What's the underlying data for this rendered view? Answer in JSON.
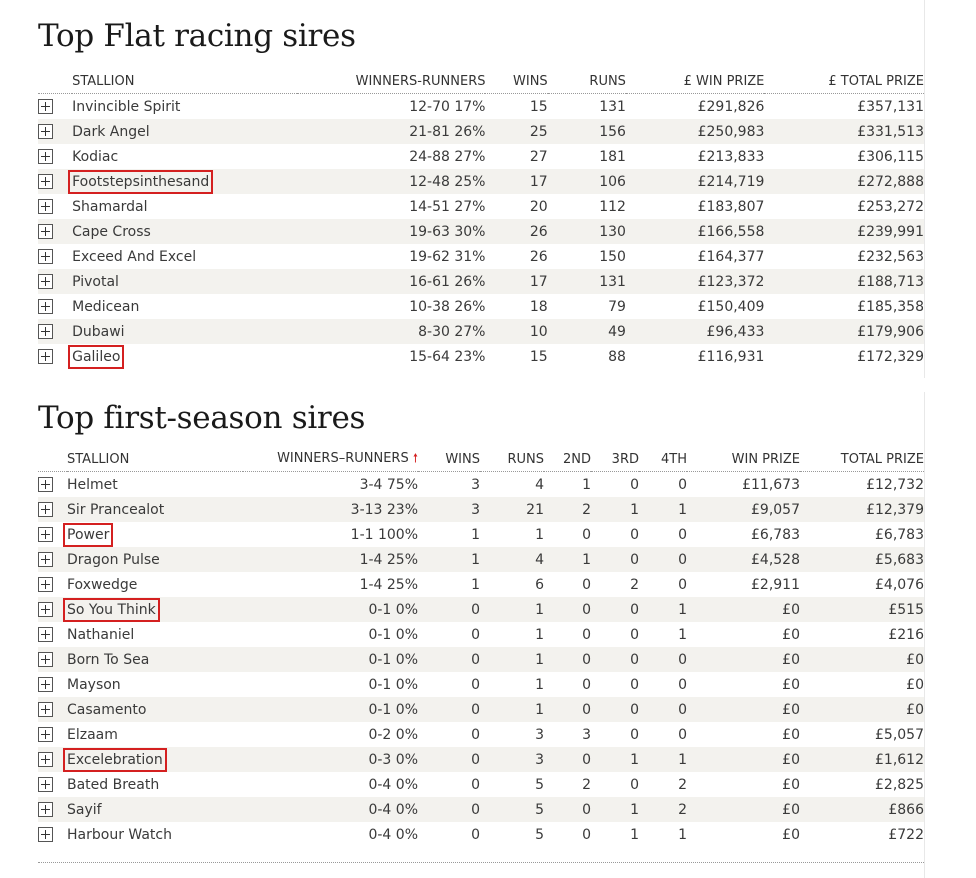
{
  "flat": {
    "title": "Top Flat racing sires",
    "headers": [
      "STALLION",
      "WINNERS-RUNNERS",
      "WINS",
      "RUNS",
      "£ WIN PRIZE",
      "£ TOTAL PRIZE"
    ],
    "rows": [
      {
        "name": "Invincible Spirit",
        "wr": "12-70 17%",
        "wins": "15",
        "runs": "131",
        "win": "£291,826",
        "total": "£357,131",
        "highlight": false
      },
      {
        "name": "Dark Angel",
        "wr": "21-81 26%",
        "wins": "25",
        "runs": "156",
        "win": "£250,983",
        "total": "£331,513",
        "highlight": false
      },
      {
        "name": "Kodiac",
        "wr": "24-88 27%",
        "wins": "27",
        "runs": "181",
        "win": "£213,833",
        "total": "£306,115",
        "highlight": false
      },
      {
        "name": "Footstepsinthesand",
        "wr": "12-48 25%",
        "wins": "17",
        "runs": "106",
        "win": "£214,719",
        "total": "£272,888",
        "highlight": true
      },
      {
        "name": "Shamardal",
        "wr": "14-51 27%",
        "wins": "20",
        "runs": "112",
        "win": "£183,807",
        "total": "£253,272",
        "highlight": false
      },
      {
        "name": "Cape Cross",
        "wr": "19-63 30%",
        "wins": "26",
        "runs": "130",
        "win": "£166,558",
        "total": "£239,991",
        "highlight": false
      },
      {
        "name": "Exceed And Excel",
        "wr": "19-62 31%",
        "wins": "26",
        "runs": "150",
        "win": "£164,377",
        "total": "£232,563",
        "highlight": false
      },
      {
        "name": "Pivotal",
        "wr": "16-61 26%",
        "wins": "17",
        "runs": "131",
        "win": "£123,372",
        "total": "£188,713",
        "highlight": false
      },
      {
        "name": "Medicean",
        "wr": "10-38 26%",
        "wins": "18",
        "runs": "79",
        "win": "£150,409",
        "total": "£185,358",
        "highlight": false
      },
      {
        "name": "Dubawi",
        "wr": "8-30 27%",
        "wins": "10",
        "runs": "49",
        "win": "£96,433",
        "total": "£179,906",
        "highlight": false
      },
      {
        "name": "Galileo",
        "wr": "15-64 23%",
        "wins": "15",
        "runs": "88",
        "win": "£116,931",
        "total": "£172,329",
        "highlight": true
      }
    ]
  },
  "first": {
    "title": "Top first-season sires",
    "headers": [
      "STALLION",
      "WINNERS–RUNNERS",
      "WINS",
      "RUNS",
      "2ND",
      "3RD",
      "4TH",
      "WIN PRIZE",
      "TOTAL PRIZE"
    ],
    "sort_arrow": "🠕",
    "rows": [
      {
        "name": "Helmet",
        "wr": "3-4 75%",
        "wins": "3",
        "runs": "4",
        "second": "1",
        "third": "0",
        "fourth": "0",
        "win": "£11,673",
        "total": "£12,732",
        "highlight": false
      },
      {
        "name": "Sir Prancealot",
        "wr": "3-13 23%",
        "wins": "3",
        "runs": "21",
        "second": "2",
        "third": "1",
        "fourth": "1",
        "win": "£9,057",
        "total": "£12,379",
        "highlight": false
      },
      {
        "name": "Power",
        "wr": "1-1 100%",
        "wins": "1",
        "runs": "1",
        "second": "0",
        "third": "0",
        "fourth": "0",
        "win": "£6,783",
        "total": "£6,783",
        "highlight": true
      },
      {
        "name": "Dragon Pulse",
        "wr": "1-4 25%",
        "wins": "1",
        "runs": "4",
        "second": "1",
        "third": "0",
        "fourth": "0",
        "win": "£4,528",
        "total": "£5,683",
        "highlight": false
      },
      {
        "name": "Foxwedge",
        "wr": "1-4 25%",
        "wins": "1",
        "runs": "6",
        "second": "0",
        "third": "2",
        "fourth": "0",
        "win": "£2,911",
        "total": "£4,076",
        "highlight": false
      },
      {
        "name": "So You Think",
        "wr": "0-1 0%",
        "wins": "0",
        "runs": "1",
        "second": "0",
        "third": "0",
        "fourth": "1",
        "win": "£0",
        "total": "£515",
        "highlight": true
      },
      {
        "name": "Nathaniel",
        "wr": "0-1 0%",
        "wins": "0",
        "runs": "1",
        "second": "0",
        "third": "0",
        "fourth": "1",
        "win": "£0",
        "total": "£216",
        "highlight": false
      },
      {
        "name": "Born To Sea",
        "wr": "0-1 0%",
        "wins": "0",
        "runs": "1",
        "second": "0",
        "third": "0",
        "fourth": "0",
        "win": "£0",
        "total": "£0",
        "highlight": false
      },
      {
        "name": "Mayson",
        "wr": "0-1 0%",
        "wins": "0",
        "runs": "1",
        "second": "0",
        "third": "0",
        "fourth": "0",
        "win": "£0",
        "total": "£0",
        "highlight": false
      },
      {
        "name": "Casamento",
        "wr": "0-1 0%",
        "wins": "0",
        "runs": "1",
        "second": "0",
        "third": "0",
        "fourth": "0",
        "win": "£0",
        "total": "£0",
        "highlight": false
      },
      {
        "name": "Elzaam",
        "wr": "0-2 0%",
        "wins": "0",
        "runs": "3",
        "second": "3",
        "third": "0",
        "fourth": "0",
        "win": "£0",
        "total": "£5,057",
        "highlight": false
      },
      {
        "name": "Excelebration",
        "wr": "0-3 0%",
        "wins": "0",
        "runs": "3",
        "second": "0",
        "third": "1",
        "fourth": "1",
        "win": "£0",
        "total": "£1,612",
        "highlight": true
      },
      {
        "name": "Bated Breath",
        "wr": "0-4 0%",
        "wins": "0",
        "runs": "5",
        "second": "2",
        "third": "0",
        "fourth": "2",
        "win": "£0",
        "total": "£2,825",
        "highlight": false
      },
      {
        "name": "Sayif",
        "wr": "0-4 0%",
        "wins": "0",
        "runs": "5",
        "second": "0",
        "third": "1",
        "fourth": "2",
        "win": "£0",
        "total": "£866",
        "highlight": false
      },
      {
        "name": "Harbour Watch",
        "wr": "0-4 0%",
        "wins": "0",
        "runs": "5",
        "second": "0",
        "third": "1",
        "fourth": "1",
        "win": "£0",
        "total": "£722",
        "highlight": false
      }
    ]
  },
  "colors": {
    "highlight": "#d42020",
    "alt_row": "#f3f2ee"
  }
}
